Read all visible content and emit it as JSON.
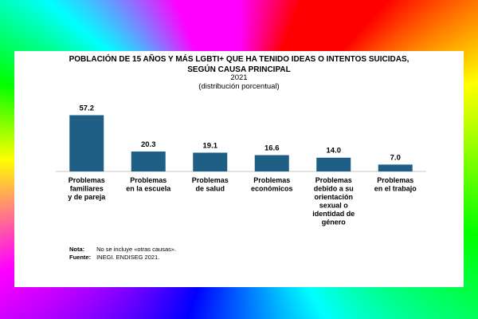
{
  "chart_data": {
    "type": "bar",
    "title_line1": "POBLACIÓN DE 15 AÑOS Y MÁS LGBTI+ QUE HA TENIDO IDEAS O INTENTOS SUICIDAS,",
    "title_line2": "SEGÚN CAUSA PRINCIPAL",
    "subtitle_year": "2021",
    "subtitle_unit": "(distribución porcentual)",
    "categories": [
      [
        "Problemas",
        "familiares",
        "y de pareja"
      ],
      [
        "Problemas",
        "en la escuela"
      ],
      [
        "Problemas",
        "de salud"
      ],
      [
        "Problemas",
        "económicos"
      ],
      [
        "Problemas",
        "debido a su",
        "orientación",
        "sexual o",
        "identidad de",
        "género"
      ],
      [
        "Problemas",
        "en el trabajo"
      ]
    ],
    "values": [
      57.2,
      20.3,
      19.1,
      16.6,
      14.0,
      7.0
    ],
    "value_labels": [
      "57.2",
      "20.3",
      "19.1",
      "16.6",
      "14.0",
      "7.0"
    ],
    "bar_color": "#1f5f86",
    "ylim": [
      0,
      60
    ],
    "grid": false,
    "legend": "none"
  },
  "notes": {
    "note_label": "Nota:",
    "note_text": "No se incluye «otras causas».",
    "source_label": "Fuente:",
    "source_text": "INEGI. ENDISEG 2021."
  }
}
